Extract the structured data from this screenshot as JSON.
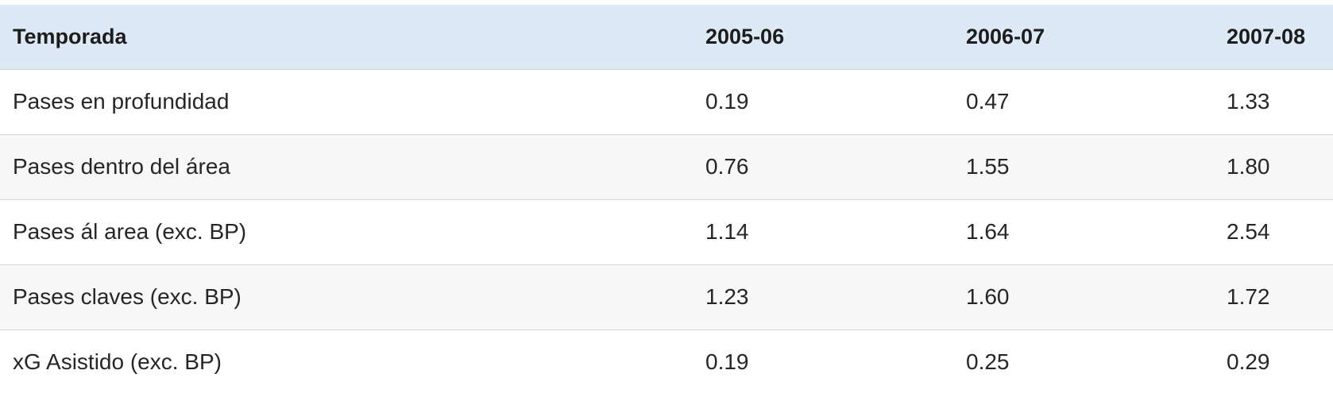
{
  "table": {
    "headers": [
      "Temporada",
      "2005-06",
      "2006-07",
      "2007-08"
    ],
    "rows": [
      [
        "Pases en profundidad",
        "0.19",
        "0.47",
        "1.33"
      ],
      [
        "Pases dentro del área",
        "0.76",
        "1.55",
        "1.80"
      ],
      [
        "Pases ál area (exc. BP)",
        "1.14",
        "1.64",
        "2.54"
      ],
      [
        "Pases claves (exc. BP)",
        "1.23",
        "1.60",
        "1.72"
      ],
      [
        "xG Asistido (exc. BP)",
        "0.19",
        "0.25",
        "0.29"
      ]
    ]
  },
  "colors": {
    "header_background": "#ddeaf5",
    "row_alt_background": "#f7f7f7",
    "row_border": "#d6d6d6"
  }
}
